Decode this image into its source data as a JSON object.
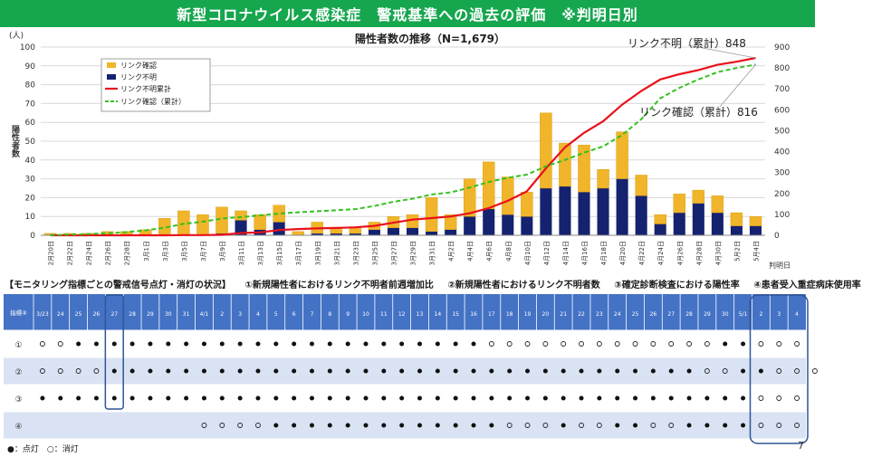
{
  "banner": {
    "title": "新型コロナウイルス感染症　警戒基準への過去の評価　※判明日別"
  },
  "colors": {
    "banner": "#16a64e",
    "linked_bar": "#f0b52a",
    "unknown_bar": "#152270",
    "unknown_line": "#e8111b",
    "linked_line": "#33c21f",
    "table_header": "#4472c4",
    "table_row_a": "#dae3f3",
    "table_row_b": "#ffffff",
    "highlight": "#2f5597"
  },
  "chart_data": {
    "type": "bar",
    "title": "陽性者数の推移（N=1,679）",
    "ylabel": "陽性者数",
    "y_unit": "(人)",
    "ylim": [
      0,
      100
    ],
    "yticks": [
      0,
      10,
      20,
      30,
      40,
      50,
      60,
      70,
      80,
      90,
      100
    ],
    "y2lim": [
      0,
      900
    ],
    "y2ticks": [
      0,
      100,
      200,
      300,
      400,
      500,
      600,
      700,
      800,
      900
    ],
    "x_unit": "判明日",
    "categories": [
      "2月20日",
      "2月22日",
      "2月24日",
      "2月26日",
      "2月28日",
      "3月1日",
      "3月3日",
      "3月5日",
      "3月7日",
      "3月9日",
      "3月11日",
      "3月13日",
      "3月15日",
      "3月17日",
      "3月19日",
      "3月21日",
      "3月23日",
      "3月25日",
      "3月27日",
      "3月29日",
      "3月31日",
      "4月2日",
      "4月4日",
      "4月6日",
      "4月8日",
      "4月10日",
      "4月12日",
      "4月14日",
      "4月16日",
      "4月18日",
      "4月20日",
      "4月22日",
      "4月24日",
      "4月26日",
      "4月28日",
      "4月30日",
      "5月2日",
      "5月4日"
    ],
    "series": [
      {
        "name": "リンク確認",
        "kind": "bar",
        "values": [
          1,
          1,
          1,
          2,
          2,
          3,
          9,
          13,
          11,
          14,
          5,
          8,
          9,
          2,
          6,
          3,
          3,
          4,
          6,
          7,
          18,
          8,
          20,
          25,
          20,
          13,
          40,
          23,
          25,
          10,
          25,
          11,
          5,
          10,
          7,
          9,
          7,
          5
        ]
      },
      {
        "name": "リンク不明",
        "kind": "bar",
        "values": [
          0,
          0,
          0,
          0,
          0,
          0,
          0,
          0,
          0,
          1,
          8,
          3,
          7,
          0,
          1,
          1,
          1,
          3,
          4,
          4,
          2,
          3,
          10,
          14,
          11,
          10,
          25,
          26,
          23,
          25,
          30,
          21,
          6,
          12,
          17,
          12,
          5,
          5
        ]
      },
      {
        "name": "リンク不明累計",
        "kind": "line",
        "axis": "right",
        "values": [
          0,
          0,
          0,
          0,
          0,
          0,
          0,
          1,
          1,
          2,
          11,
          14,
          25,
          30,
          33,
          35,
          38,
          45,
          60,
          75,
          82,
          90,
          105,
          130,
          165,
          210,
          320,
          420,
          490,
          545,
          625,
          690,
          745,
          770,
          790,
          815,
          830,
          848
        ]
      },
      {
        "name": "リンク確認（累計）",
        "kind": "line",
        "axis": "right",
        "values": [
          1,
          3,
          6,
          10,
          15,
          24,
          36,
          55,
          65,
          80,
          87,
          95,
          104,
          110,
          115,
          120,
          125,
          140,
          160,
          175,
          195,
          205,
          228,
          255,
          275,
          290,
          330,
          360,
          395,
          425,
          480,
          555,
          655,
          705,
          745,
          780,
          800,
          816
        ]
      }
    ],
    "annotations": [
      {
        "text": "リンク不明（累計）848",
        "series": "リンク不明累計"
      },
      {
        "text": "リンク確認（累計）816",
        "series": "リンク確認（累計）"
      }
    ],
    "legend_position": "top-left",
    "grid": true
  },
  "monitoring": {
    "title": "【モニタリング指標ごとの警戒信号点灯・消灯の状況】",
    "notes": [
      "①新規陽性者におけるリンク不明者前週増加比",
      "②新規陽性者におけるリンク不明者数",
      "③確定診断検査における陽性率",
      "④患者受入重症病床使用率"
    ],
    "corner_label": "指標④",
    "dates": [
      "3/23",
      "24",
      "25",
      "26",
      "27",
      "28",
      "29",
      "30",
      "31",
      "4/1",
      "2",
      "3",
      "4",
      "5",
      "6",
      "7",
      "8",
      "9",
      "10",
      "11",
      "12",
      "13",
      "14",
      "15",
      "16",
      "17",
      "18",
      "19",
      "20",
      "21",
      "22",
      "23",
      "24",
      "25",
      "26",
      "27",
      "28",
      "29",
      "30",
      "5/1",
      "2",
      "3",
      "4"
    ],
    "rows": [
      {
        "label": "①",
        "marks": "oo•••••••••••••••••••••••ooooooooooooo••ooo"
      },
      {
        "label": "②",
        "marks": "oooo•••••••••••••••••••••••••••••••••oo••ooo"
      },
      {
        "label": "③",
        "marks": "••••••••••••••••••••••••••••••••••••••••ooo"
      },
      {
        "label": "④",
        "marks": "---------oooo•••••••••••••ooo•oo••oo••••ooo"
      }
    ],
    "legend": "●：点灯　○：消灯",
    "filled_symbol": "●",
    "empty_symbol": "○"
  },
  "page_number": "7"
}
